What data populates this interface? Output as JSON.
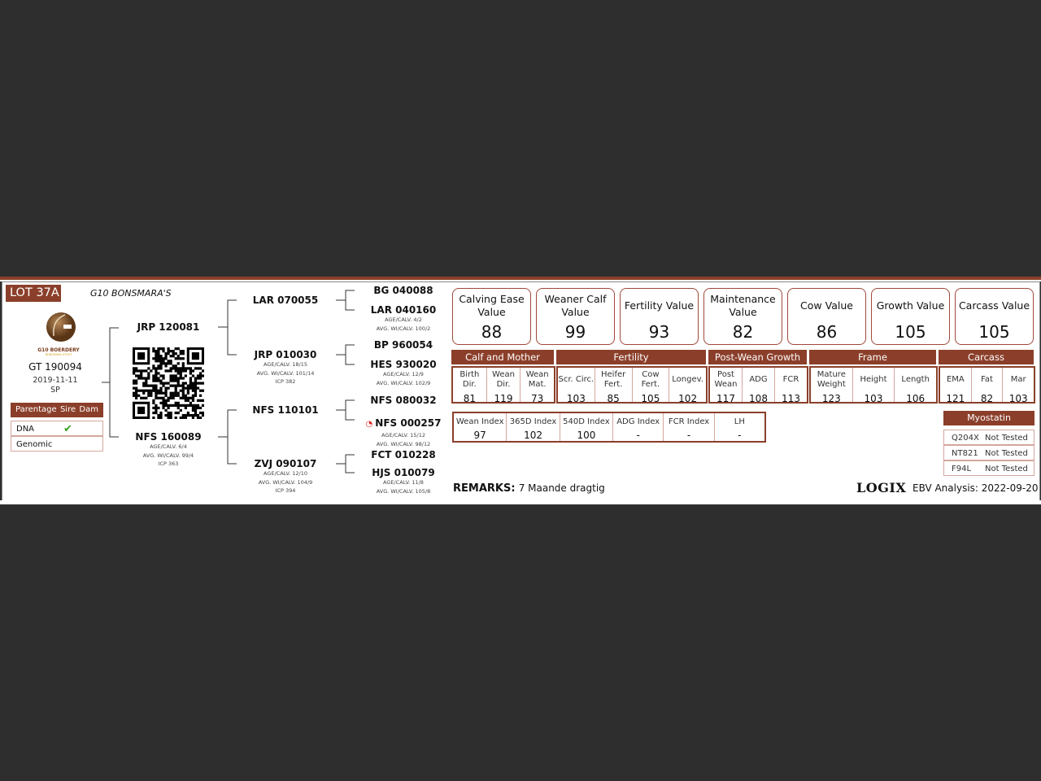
{
  "lot": "LOT 37A",
  "farm_title": "G10 BONSMARA'S",
  "logo": {
    "name": "G10 BOERDERY",
    "tagline": "BONSMARA STOET"
  },
  "animal": {
    "id": "GT 190094",
    "birth_date": "2019-11-11",
    "code": "SP"
  },
  "parentage": {
    "headers": [
      "Parentage",
      "Sire",
      "Dam"
    ],
    "rows": [
      {
        "label": "DNA",
        "sire": "✔",
        "dam": ""
      },
      {
        "label": "Genomic",
        "sire": "",
        "dam": ""
      }
    ]
  },
  "pedigree": {
    "sire": {
      "id": "JRP 120081"
    },
    "dam": {
      "id": "NFS 160089",
      "lines": [
        "AGE/CALV. 6/4",
        "AVG. WI/CALV. 99/4",
        "ICP 363"
      ]
    },
    "ss": {
      "id": "LAR 070055"
    },
    "sd": {
      "id": "JRP 010030",
      "lines": [
        "AGE/CALV. 18/15",
        "AVG. WI/CALV. 101/14",
        "ICP 382"
      ]
    },
    "ds": {
      "id": "NFS 110101"
    },
    "dd": {
      "id": "ZVJ 090107",
      "lines": [
        "AGE/CALV. 12/10",
        "AVG. WI/CALV. 104/9",
        "ICP 394"
      ]
    },
    "g3": [
      {
        "id": "BG 040088",
        "lines": []
      },
      {
        "id": "LAR 040160",
        "lines": [
          "AGE/CALV. 4/2",
          "AVG. WI/CALV. 100/2"
        ]
      },
      {
        "id": "BP 960054",
        "lines": []
      },
      {
        "id": "HES 930020",
        "lines": [
          "AGE/CALV. 12/9",
          "AVG. WI/CALV. 102/9"
        ]
      },
      {
        "id": "NFS 080032",
        "lines": []
      },
      {
        "id": "NFS 000257",
        "lines": [
          "AGE/CALV. 15/12",
          "AVG. WI/CALV. 98/12"
        ],
        "icon": "genomic-tested-icon"
      },
      {
        "id": "FCT 010228",
        "lines": []
      },
      {
        "id": "HJS 010079",
        "lines": [
          "AGE/CALV. 11/8",
          "AVG. WI/CALV. 105/8"
        ]
      }
    ]
  },
  "values": [
    {
      "title": "Calving Ease Value",
      "value": "88"
    },
    {
      "title": "Weaner Calf Value",
      "value": "99"
    },
    {
      "title": "Fertility Value",
      "value": "93"
    },
    {
      "title": "Maintenance Value",
      "value": "82"
    },
    {
      "title": "Cow Value",
      "value": "86"
    },
    {
      "title": "Growth Value",
      "value": "105"
    },
    {
      "title": "Carcass Value",
      "value": "105"
    }
  ],
  "groups": [
    {
      "name": "Calf and Mother",
      "cols": [
        {
          "l": "Birth Dir.",
          "v": "81"
        },
        {
          "l": "Wean Dir.",
          "v": "119"
        },
        {
          "l": "Wean Mat.",
          "v": "73"
        }
      ]
    },
    {
      "name": "Fertility",
      "cols": [
        {
          "l": "Scr. Circ.",
          "v": "103"
        },
        {
          "l": "Heifer Fert.",
          "v": "85"
        },
        {
          "l": "Cow Fert.",
          "v": "105"
        },
        {
          "l": "Longev.",
          "v": "102"
        }
      ]
    },
    {
      "name": "Post-Wean Growth",
      "cols": [
        {
          "l": "Post Wean",
          "v": "117"
        },
        {
          "l": "ADG",
          "v": "108"
        },
        {
          "l": "FCR",
          "v": "113"
        }
      ]
    },
    {
      "name": "Frame",
      "cols": [
        {
          "l": "Mature Weight",
          "v": "123"
        },
        {
          "l": "Height",
          "v": "103"
        },
        {
          "l": "Length",
          "v": "106"
        }
      ]
    },
    {
      "name": "Carcass",
      "cols": [
        {
          "l": "EMA",
          "v": "121"
        },
        {
          "l": "Fat",
          "v": "82"
        },
        {
          "l": "Mar",
          "v": "103"
        }
      ]
    }
  ],
  "indexes": [
    {
      "l": "Wean Index",
      "v": "97"
    },
    {
      "l": "365D Index",
      "v": "102"
    },
    {
      "l": "540D Index",
      "v": "100"
    },
    {
      "l": "ADG Index",
      "v": "-"
    },
    {
      "l": "FCR Index",
      "v": "-"
    },
    {
      "l": "LH",
      "v": "-"
    }
  ],
  "myostatin": {
    "title": "Myostatin",
    "rows": [
      {
        "gene": "Q204X",
        "status": "Not Tested"
      },
      {
        "gene": "NT821",
        "status": "Not Tested"
      },
      {
        "gene": "F94L",
        "status": "Not Tested"
      }
    ]
  },
  "remarks": {
    "label": "REMARKS:",
    "text": "7 Maande dragtig"
  },
  "footer": {
    "brand": "LOGIX",
    "analysis": "EBV Analysis: 2022-09-20"
  },
  "colors": {
    "accent": "#8b3f2a",
    "background": "#2e2e2e",
    "check": "#3aa01e"
  }
}
